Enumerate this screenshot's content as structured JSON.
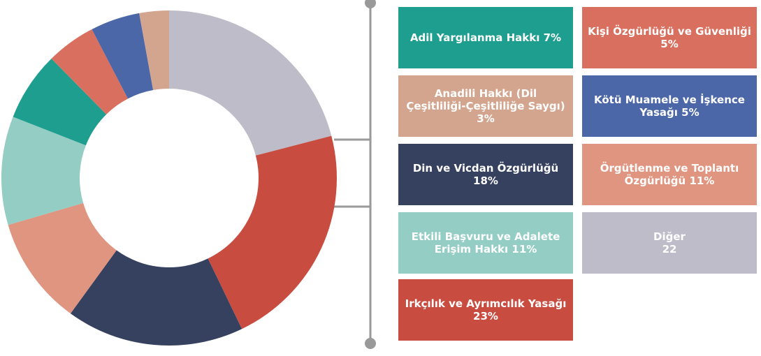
{
  "chart_data": {
    "type": "pie",
    "donut": true,
    "categories": [
      "Diğer",
      "Irkçılık ve Ayrımcılık Yasağı",
      "Din ve Vicdan Özgürlüğü",
      "Örgütlenme ve Toplantı Özgürlüğü",
      "Etkili Başvuru ve Adalete Erişim Hakkı",
      "Adil Yargılanma Hakkı",
      "Kişi Özgürlüğü ve Güvenliği",
      "Kötü Muamele ve İşkence Yasağı",
      "Anadili Hakkı (Dil Çeşitliliği-Çeşitliliğe Saygı)"
    ],
    "values": [
      22,
      23,
      18,
      11,
      11,
      7,
      5,
      5,
      3
    ],
    "value_labels": [
      "22",
      "23%",
      "18%",
      "11%",
      "11%",
      "7%",
      "5%",
      "5%",
      "3%"
    ],
    "colors": [
      "#bdbcc8",
      "#c94c40",
      "#36415f",
      "#e09580",
      "#93cdc4",
      "#1e9e8f",
      "#d9705f",
      "#4b67a8",
      "#d4a58e"
    ]
  }
}
